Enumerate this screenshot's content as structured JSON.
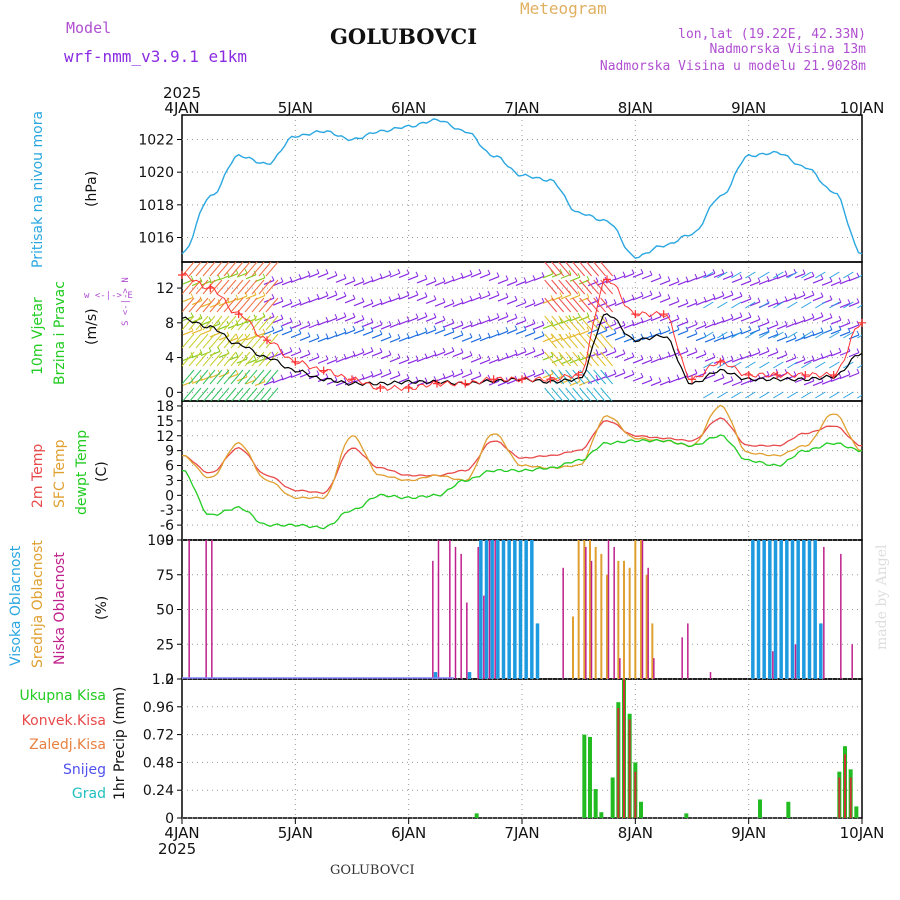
{
  "header": {
    "model_label": "Model",
    "model_name": "wrf-nmm_v3.9.1 e1km",
    "station": "GOLUBOVCI",
    "meteogram": "Meteogram",
    "lonlat": "lon,lat (19.22E, 42.33N)",
    "elev": "Nadmorska Visina 13m",
    "elev_model": "Nadmorska Visina u modelu 21.9028m",
    "year": "2025",
    "footer_station": "GOLUBOVCI",
    "credit": "made by Angel"
  },
  "colors": {
    "pressure": "#2aa7e0",
    "temp2m": "#e84a4a",
    "sfc": "#e0a030",
    "dewpt": "#22cc22",
    "high_cloud": "#1e9be0",
    "mid_cloud": "#e0a030",
    "low_cloud": "#c0208c",
    "precip_total": "#22bb22",
    "precip_conv": "#cc3333",
    "wind_black": "#000000",
    "gust": "#ff3333",
    "barb_purple": "#8a2be2",
    "barb_blue": "#1e6ee0",
    "grid": "#999999",
    "magenta_label": "#b050d0"
  },
  "x_axis": {
    "ticks": [
      "4JAN",
      "5JAN",
      "6JAN",
      "7JAN",
      "8JAN",
      "9JAN",
      "10JAN"
    ]
  },
  "panels": {
    "pressure": {
      "label": "Pritisak na nivou mora",
      "unit": "(hPa)"
    },
    "wind": {
      "label1": "10m Vjetar",
      "label2": "Brzina i Pravac",
      "unit": "(m/s)",
      "compass": "w <-|-> E",
      "compass2": "S <-|-> N"
    },
    "temp": {
      "label1": "2m Temp",
      "label2": "SFC Temp",
      "label3": "dewpt Temp",
      "unit": "(C)"
    },
    "cloud": {
      "label1": "Visoka Oblacnost",
      "label2": "Srednja Oblacnost",
      "label3": "Niska Oblacnost",
      "unit": "(%)"
    },
    "precip": {
      "unit": "1hr Precip (mm)",
      "legend": [
        "Ukupna Kisa",
        "Konvek.Kisa",
        "Zaledj.Kisa",
        "Snijeg",
        "Grad"
      ]
    }
  },
  "chart_data": [
    {
      "type": "line",
      "x": [
        "2025-01-04T00",
        "2025-01-04T06",
        "2025-01-04T12",
        "2025-01-04T18",
        "2025-01-05T00",
        "2025-01-05T06",
        "2025-01-05T12",
        "2025-01-05T18",
        "2025-01-06T00",
        "2025-01-06T06",
        "2025-01-06T12",
        "2025-01-06T18",
        "2025-01-07T00",
        "2025-01-07T06",
        "2025-01-07T12",
        "2025-01-07T18",
        "2025-01-08T00",
        "2025-01-08T06",
        "2025-01-08T12",
        "2025-01-08T18",
        "2025-01-09T00",
        "2025-01-09T06",
        "2025-01-09T12",
        "2025-01-09T18",
        "2025-01-10T00"
      ],
      "series": [
        {
          "values": [
            1015.0,
            1018.5,
            1021.0,
            1020.5,
            1022.2,
            1022.5,
            1022.0,
            1022.5,
            1022.8,
            1023.2,
            1022.5,
            1021.0,
            1019.8,
            1019.5,
            1017.5,
            1017.0,
            1014.8,
            1015.5,
            1016.2,
            1018.5,
            1021.0,
            1021.2,
            1020.3,
            1018.8,
            1015.0
          ]
        }
      ],
      "ylim": [
        1014.5,
        1023.5
      ],
      "yticks": [
        1016,
        1018,
        1020,
        1022
      ]
    },
    {
      "type": "line",
      "x": [
        "2025-01-04T00",
        "2025-01-04T06",
        "2025-01-04T12",
        "2025-01-04T18",
        "2025-01-05T00",
        "2025-01-05T06",
        "2025-01-05T12",
        "2025-01-05T18",
        "2025-01-06T00",
        "2025-01-06T06",
        "2025-01-06T12",
        "2025-01-06T18",
        "2025-01-07T00",
        "2025-01-07T06",
        "2025-01-07T12",
        "2025-01-07T18",
        "2025-01-08T00",
        "2025-01-08T06",
        "2025-01-08T12",
        "2025-01-08T18",
        "2025-01-09T00",
        "2025-01-09T06",
        "2025-01-09T12",
        "2025-01-09T18",
        "2025-01-10T00"
      ],
      "series": [
        {
          "values": [
            8.5,
            7.5,
            5.5,
            4.0,
            2.5,
            1.5,
            1.0,
            1.0,
            1.2,
            1.2,
            1.0,
            1.3,
            1.5,
            1.2,
            1.5,
            9.0,
            6.0,
            6.5,
            1.0,
            2.5,
            1.5,
            1.5,
            1.5,
            1.8,
            4.5
          ]
        },
        {
          "values": [
            13.5,
            12.0,
            9.0,
            6.0,
            3.5,
            2.5,
            1.5,
            0.5,
            0.5,
            1.0,
            1.0,
            1.5,
            1.5,
            1.5,
            2.0,
            13.0,
            9.0,
            9.0,
            1.5,
            3.5,
            2.0,
            2.0,
            2.0,
            2.0,
            8.0
          ]
        }
      ],
      "ylim": [
        -1,
        15
      ],
      "yticks": [
        0,
        4,
        8,
        12
      ]
    },
    {
      "type": "line",
      "x": [
        "2025-01-04T00",
        "2025-01-04T06",
        "2025-01-04T12",
        "2025-01-04T18",
        "2025-01-05T00",
        "2025-01-05T06",
        "2025-01-05T12",
        "2025-01-05T18",
        "2025-01-06T00",
        "2025-01-06T06",
        "2025-01-06T12",
        "2025-01-06T18",
        "2025-01-07T00",
        "2025-01-07T06",
        "2025-01-07T12",
        "2025-01-07T18",
        "2025-01-08T00",
        "2025-01-08T06",
        "2025-01-08T12",
        "2025-01-08T18",
        "2025-01-09T00",
        "2025-01-09T06",
        "2025-01-09T12",
        "2025-01-09T18",
        "2025-01-10T00"
      ],
      "series": [
        {
          "values": [
            8.0,
            4.5,
            9.5,
            4.0,
            1.0,
            0.5,
            9.5,
            5.5,
            4.0,
            4.0,
            5.0,
            11.0,
            7.5,
            8.0,
            9.0,
            15.0,
            12.0,
            11.5,
            11.0,
            15.5,
            10.0,
            10.0,
            12.5,
            14.0,
            10.0
          ]
        },
        {
          "values": [
            8.0,
            3.5,
            10.5,
            3.0,
            -0.5,
            -0.5,
            12.0,
            4.0,
            3.0,
            4.0,
            3.0,
            12.5,
            6.0,
            5.5,
            6.0,
            16.0,
            11.5,
            11.0,
            10.0,
            18.0,
            8.5,
            8.0,
            10.0,
            16.5,
            9.0
          ]
        },
        {
          "values": [
            5.0,
            -4.0,
            -2.5,
            -6.0,
            -6.0,
            -6.5,
            -3.0,
            0.0,
            -0.5,
            0.0,
            3.0,
            5.0,
            5.0,
            5.5,
            7.0,
            10.5,
            11.0,
            11.0,
            10.0,
            12.0,
            7.0,
            6.0,
            9.0,
            10.5,
            9.0
          ]
        }
      ],
      "ylim": [
        -9,
        19
      ],
      "yticks": [
        -9,
        -6,
        -3,
        0,
        3,
        6,
        9,
        12,
        15,
        18
      ]
    },
    {
      "type": "bar",
      "ylim": [
        0,
        100
      ],
      "yticks": [
        0,
        25,
        50,
        75,
        100
      ],
      "series": [
        {
          "points": [
            [
              6.25,
              5
            ],
            [
              6.55,
              5
            ],
            [
              6.65,
              100
            ],
            [
              6.7,
              100
            ],
            [
              6.75,
              100
            ],
            [
              6.8,
              100
            ],
            [
              6.85,
              100
            ],
            [
              6.9,
              100
            ],
            [
              6.95,
              100
            ],
            [
              7.0,
              100
            ],
            [
              7.05,
              100
            ],
            [
              7.1,
              100
            ],
            [
              7.15,
              40
            ],
            [
              9.05,
              100
            ],
            [
              9.1,
              100
            ],
            [
              9.15,
              100
            ],
            [
              9.2,
              100
            ],
            [
              9.25,
              100
            ],
            [
              9.3,
              100
            ],
            [
              9.35,
              100
            ],
            [
              9.4,
              100
            ],
            [
              9.45,
              100
            ],
            [
              9.5,
              100
            ],
            [
              9.55,
              100
            ],
            [
              9.6,
              100
            ],
            [
              9.65,
              40
            ]
          ]
        },
        {
          "points": [
            [
              7.45,
              45
            ],
            [
              7.5,
              100
            ],
            [
              7.55,
              100
            ],
            [
              7.6,
              100
            ],
            [
              7.65,
              95
            ],
            [
              7.7,
              90
            ],
            [
              7.75,
              75
            ],
            [
              7.85,
              85
            ],
            [
              7.9,
              85
            ],
            [
              7.95,
              80
            ],
            [
              8.0,
              100
            ],
            [
              8.05,
              100
            ],
            [
              8.1,
              75
            ],
            [
              8.15,
              40
            ]
          ]
        },
        {
          "points": [
            [
              4.05,
              100
            ],
            [
              4.2,
              100
            ],
            [
              4.25,
              100
            ],
            [
              6.2,
              85
            ],
            [
              6.25,
              100
            ],
            [
              6.35,
              100
            ],
            [
              6.4,
              95
            ],
            [
              6.45,
              90
            ],
            [
              6.5,
              55
            ],
            [
              6.6,
              95
            ],
            [
              6.65,
              60
            ],
            [
              6.7,
              100
            ],
            [
              6.75,
              100
            ],
            [
              7.35,
              80
            ],
            [
              7.55,
              95
            ],
            [
              7.6,
              85
            ],
            [
              7.75,
              100
            ],
            [
              7.8,
              95
            ],
            [
              7.85,
              15
            ],
            [
              8.05,
              100
            ],
            [
              8.1,
              80
            ],
            [
              8.15,
              15
            ],
            [
              8.4,
              30
            ],
            [
              8.45,
              40
            ],
            [
              8.65,
              5
            ],
            [
              9.2,
              20
            ],
            [
              9.4,
              25
            ],
            [
              9.65,
              95
            ],
            [
              9.8,
              90
            ],
            [
              9.9,
              25
            ]
          ]
        }
      ]
    },
    {
      "type": "bar",
      "ylim": [
        0,
        1.2
      ],
      "yticks": [
        0,
        0.24,
        0.48,
        0.72,
        0.96,
        1.2
      ],
      "series": [
        {
          "points": [
            [
              6.6,
              0.04
            ],
            [
              7.55,
              0.72
            ],
            [
              7.6,
              0.7
            ],
            [
              7.65,
              0.25
            ],
            [
              7.7,
              0.05
            ],
            [
              7.8,
              0.35
            ],
            [
              7.85,
              1.0
            ],
            [
              7.9,
              1.2
            ],
            [
              7.95,
              0.9
            ],
            [
              8.0,
              0.48
            ],
            [
              8.05,
              0.14
            ],
            [
              8.45,
              0.04
            ],
            [
              9.1,
              0.16
            ],
            [
              9.35,
              0.14
            ],
            [
              9.8,
              0.4
            ],
            [
              9.85,
              0.62
            ],
            [
              9.9,
              0.42
            ],
            [
              9.95,
              0.1
            ]
          ]
        },
        {
          "points": [
            [
              7.85,
              0.95
            ],
            [
              7.9,
              1.2
            ],
            [
              7.95,
              0.85
            ],
            [
              8.0,
              0.4
            ],
            [
              9.8,
              0.35
            ],
            [
              9.85,
              0.55
            ],
            [
              9.9,
              0.35
            ]
          ]
        }
      ]
    }
  ]
}
